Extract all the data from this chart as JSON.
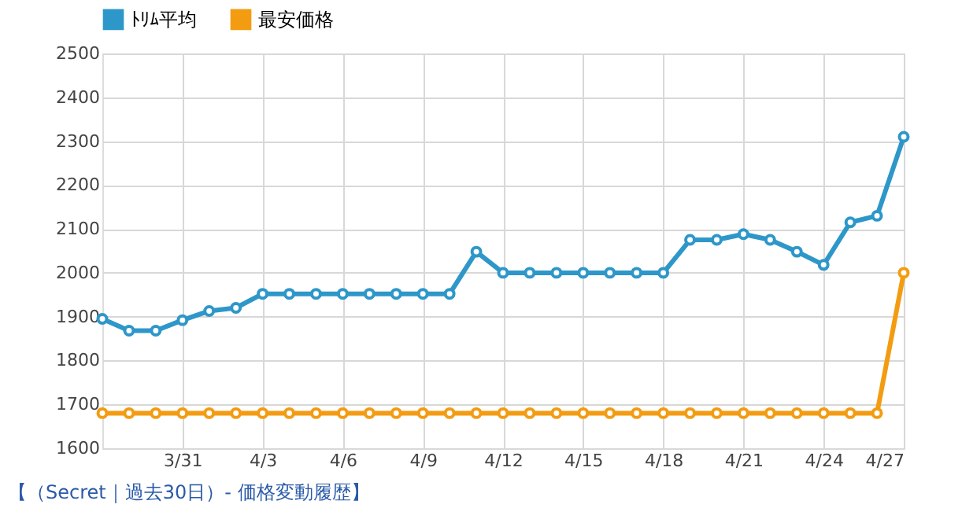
{
  "chart_data": {
    "type": "line",
    "x": [
      "--03-28",
      "--03-29",
      "--03-30",
      "--03-31",
      "--04-01",
      "--04-02",
      "--04-03",
      "--04-04",
      "--04-05",
      "--04-06",
      "--04-07",
      "--04-08",
      "--04-09",
      "--04-10",
      "--04-11",
      "--04-12",
      "--04-13",
      "--04-14",
      "--04-15",
      "--04-16",
      "--04-17",
      "--04-18",
      "--04-19",
      "--04-20",
      "--04-21",
      "--04-22",
      "--04-23",
      "--04-24",
      "--04-25",
      "--04-26",
      "--04-27"
    ],
    "series": [
      {
        "name": "ﾄﾘﾑ平均",
        "color": "#2e97c9",
        "values": [
          1895,
          1868,
          1868,
          1892,
          1913,
          1920,
          1952,
          1952,
          1952,
          1952,
          1952,
          1952,
          1952,
          1952,
          2048,
          2000,
          2000,
          2000,
          2000,
          2000,
          2000,
          2000,
          2075,
          2075,
          2088,
          2075,
          2048,
          2018,
          2115,
          2130,
          2310
        ]
      },
      {
        "name": "最安価格",
        "color": "#f39c12",
        "values": [
          1680,
          1680,
          1680,
          1680,
          1680,
          1680,
          1680,
          1680,
          1680,
          1680,
          1680,
          1680,
          1680,
          1680,
          1680,
          1680,
          1680,
          1680,
          1680,
          1680,
          1680,
          1680,
          1680,
          1680,
          1680,
          1680,
          1680,
          1680,
          1680,
          1680,
          2000
        ]
      }
    ],
    "xlim": [
      "--03-28",
      "--04-27"
    ],
    "xticks": [
      {
        "value": "--03-31",
        "label": "3/31"
      },
      {
        "value": "--04-03",
        "label": "4/3"
      },
      {
        "value": "--04-06",
        "label": "4/6"
      },
      {
        "value": "--04-09",
        "label": "4/9"
      },
      {
        "value": "--04-12",
        "label": "4/12"
      },
      {
        "value": "--04-15",
        "label": "4/15"
      },
      {
        "value": "--04-18",
        "label": "4/18"
      },
      {
        "value": "--04-21",
        "label": "4/21"
      },
      {
        "value": "--04-24",
        "label": "4/24"
      },
      {
        "value": "--04-27",
        "label": "4/27"
      }
    ],
    "ylim": [
      1600,
      2500
    ],
    "yticks": [
      1600,
      1700,
      1800,
      1900,
      2000,
      2100,
      2200,
      2300,
      2400,
      2500
    ],
    "grid": true,
    "legend": "top left",
    "marker": "circle",
    "line_style": "solid",
    "annotations": [
      "【（Secret｜過去30日）- 価格変動履歴】"
    ]
  }
}
